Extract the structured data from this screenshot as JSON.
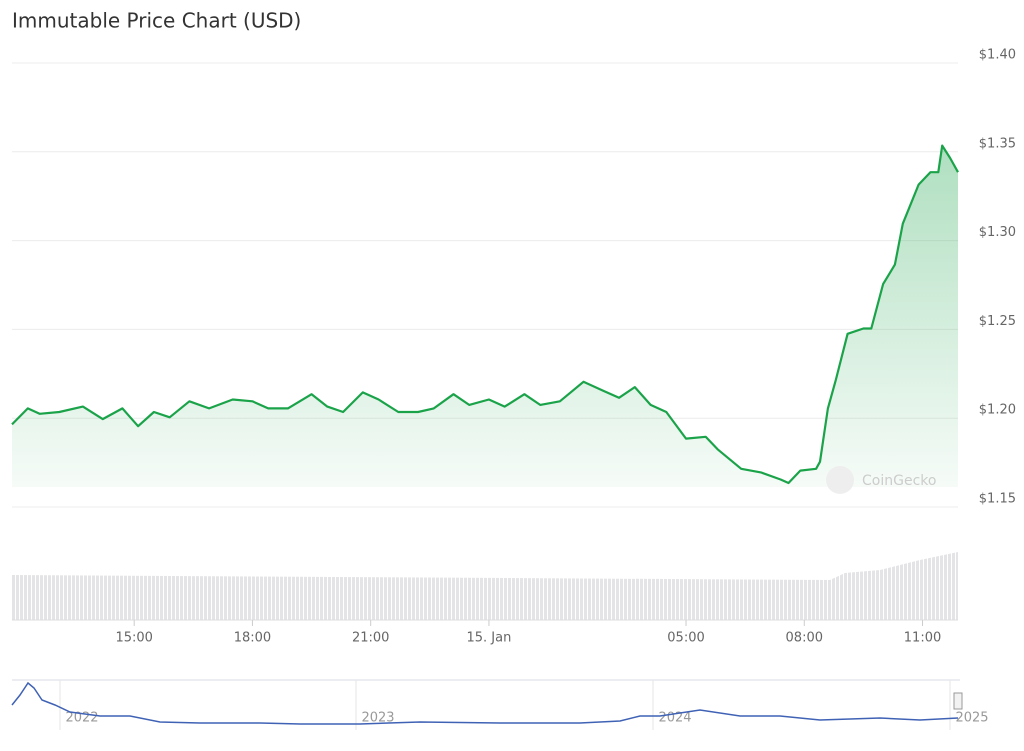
{
  "chart_data": {
    "type": "line",
    "title": "Immutable Price Chart (USD)",
    "x": [
      11.9,
      12.3,
      12.6,
      13.1,
      13.7,
      14.2,
      14.7,
      15.1,
      15.5,
      15.9,
      16.4,
      16.9,
      17.5,
      18.0,
      18.4,
      18.9,
      19.5,
      19.9,
      20.3,
      20.8,
      21.2,
      21.7,
      22.2,
      22.6,
      23.1,
      23.5,
      24.0,
      24.4,
      24.9,
      25.3,
      25.8,
      26.4,
      26.9,
      27.3,
      27.7,
      28.1,
      28.5,
      29.0,
      29.5,
      29.8,
      30.4,
      30.9,
      31.4,
      31.6,
      31.9,
      32.3,
      32.4,
      32.6,
      32.8,
      33.1,
      33.5,
      33.7,
      34.0,
      34.3,
      34.5,
      34.9,
      35.2,
      35.4,
      35.5,
      35.7,
      35.9
    ],
    "series": [
      {
        "color": "#1ba34a",
        "values": [
          1.192,
          1.201,
          1.198,
          1.199,
          1.202,
          1.195,
          1.201,
          1.191,
          1.199,
          1.196,
          1.205,
          1.201,
          1.206,
          1.205,
          1.201,
          1.201,
          1.209,
          1.202,
          1.199,
          1.21,
          1.206,
          1.199,
          1.199,
          1.201,
          1.209,
          1.203,
          1.206,
          1.202,
          1.209,
          1.203,
          1.205,
          1.216,
          1.211,
          1.207,
          1.213,
          1.203,
          1.199,
          1.184,
          1.185,
          1.178,
          1.167,
          1.165,
          1.161,
          1.159,
          1.166,
          1.167,
          1.171,
          1.201,
          1.217,
          1.243,
          1.246,
          1.246,
          1.271,
          1.282,
          1.305,
          1.327,
          1.334,
          1.334,
          1.349,
          1.342,
          1.334
        ]
      }
    ],
    "xlim": [
      11.9,
      35.9
    ],
    "xticks": [
      {
        "value": 15,
        "label": "15:00"
      },
      {
        "value": 18,
        "label": "18:00"
      },
      {
        "value": 21,
        "label": "21:00"
      },
      {
        "value": 24,
        "label": "15. Jan"
      },
      {
        "value": 29,
        "label": "05:00"
      },
      {
        "value": 32,
        "label": "08:00"
      },
      {
        "value": 35,
        "label": "11:00"
      }
    ],
    "ylim": [
      1.15,
      1.4
    ],
    "yticks": [
      {
        "value": 1.15,
        "label": "$1.15"
      },
      {
        "value": 1.2,
        "label": "$1.20"
      },
      {
        "value": 1.25,
        "label": "$1.25"
      },
      {
        "value": 1.3,
        "label": "$1.30"
      },
      {
        "value": 1.35,
        "label": "$1.35"
      },
      {
        "value": 1.4,
        "label": "$1.40"
      }
    ],
    "grid": true,
    "watermark": "CoinGecko",
    "navigator_labels": [
      "2022",
      "2023",
      "2024",
      "2025"
    ]
  }
}
